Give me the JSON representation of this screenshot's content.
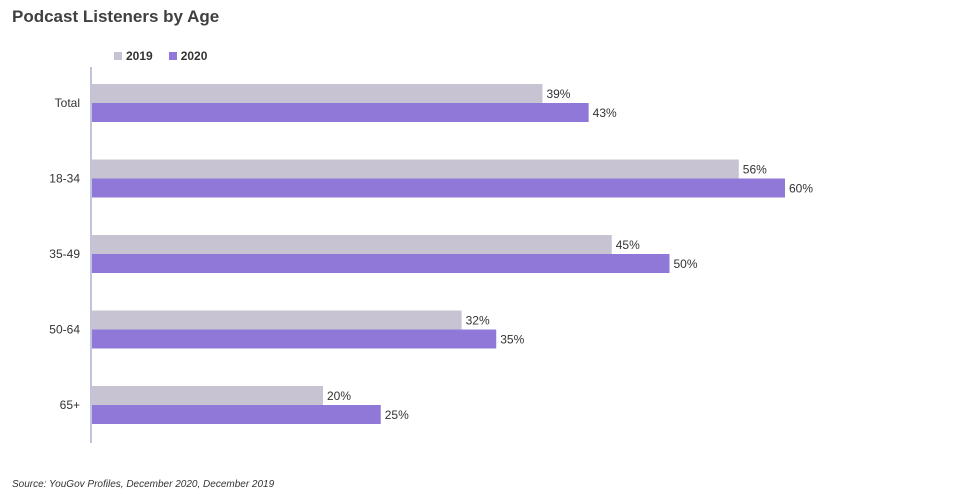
{
  "title": "Podcast Listeners by Age",
  "source": "Source: YouGov Profiles, December 2020, December 2019",
  "colors": {
    "2019": "#c8c3d3",
    "2020": "#8f78d8",
    "axis": "#7e8bb5"
  },
  "chart_data": {
    "type": "bar",
    "orientation": "horizontal",
    "title": "Podcast Listeners by Age",
    "categories": [
      "Total",
      "18-34",
      "35-49",
      "50-64",
      "65+"
    ],
    "series": [
      {
        "name": "2019",
        "values": [
          39,
          56,
          45,
          32,
          20
        ],
        "labels": [
          "39%",
          "56%",
          "45%",
          "32%",
          "20%"
        ]
      },
      {
        "name": "2020",
        "values": [
          43,
          60,
          50,
          35,
          25
        ],
        "labels": [
          "43%",
          "60%",
          "50%",
          "35%",
          "25%"
        ]
      }
    ],
    "unit": "%",
    "xlim": [
      0,
      60
    ],
    "grid": false,
    "legend_position": "top-left"
  }
}
